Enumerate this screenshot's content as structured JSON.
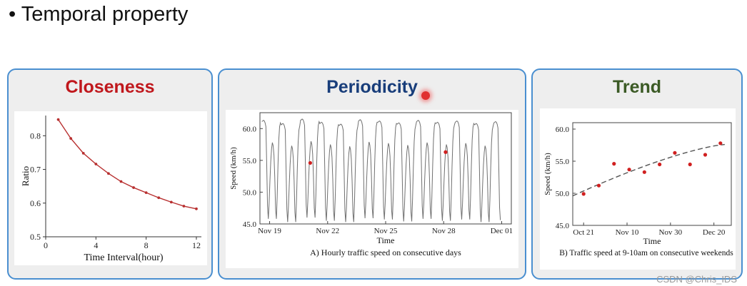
{
  "slide": {
    "bullet": "•",
    "title": "Temporal property"
  },
  "panels": {
    "closeness": {
      "title": "Closeness",
      "title_color": "#c0171c"
    },
    "periodicity": {
      "title": "Periodicity",
      "title_color": "#183d7a",
      "caption": "A) Hourly traffic speed on consecutive days"
    },
    "trend": {
      "title": "Trend",
      "title_color": "#3b5a25",
      "caption": "B) Traffic speed at 9-10am on consecutive weekends"
    }
  },
  "watermark": "CSDN @Chris_IDS",
  "colors": {
    "border": "#4a8fd0",
    "panel_bg": "#eeeeee",
    "curve": "#b83030",
    "marker": "#d02020",
    "line": "#707070"
  },
  "chart_data": [
    {
      "id": "closeness",
      "type": "line",
      "xlabel": "Time Interval(hour)",
      "ylabel": "Ratio",
      "xlim": [
        0,
        12.4
      ],
      "ylim": [
        0.5,
        0.86
      ],
      "xticks": [
        0,
        4,
        8,
        12
      ],
      "yticks": [
        0.5,
        0.6,
        0.7,
        0.8
      ],
      "ytick_labels": [
        "0.5",
        "0.6",
        "0.7",
        "0.8"
      ],
      "x": [
        1,
        2,
        3,
        4,
        5,
        6,
        7,
        8,
        9,
        10,
        11,
        12
      ],
      "y": [
        0.848,
        0.792,
        0.748,
        0.716,
        0.688,
        0.664,
        0.646,
        0.631,
        0.616,
        0.603,
        0.591,
        0.583
      ]
    },
    {
      "id": "periodicity",
      "type": "line",
      "xlabel": "Time",
      "ylabel": "Speed (km/h)",
      "ylim": [
        45,
        62.5
      ],
      "yticks": [
        45,
        50,
        55,
        60
      ],
      "ytick_labels": [
        "45.0",
        "50.0",
        "55.0",
        "60.0"
      ],
      "xtick_labels": [
        "Nov 19",
        "Nov 22",
        "Nov 25",
        "Nov 28",
        "Dec 01"
      ],
      "xlim_days": [
        0,
        13
      ],
      "xtick_days": [
        0.5,
        3.5,
        6.5,
        9.5,
        12.5
      ],
      "start_day": 0.1,
      "daily_profile": [
        60.8,
        60.9,
        61.0,
        60.9,
        60.6,
        60.0,
        54.0,
        47.5,
        45.5,
        48.0,
        51.5,
        54.5,
        56.5,
        57.5,
        57.0,
        55.5,
        52.0,
        47.0,
        45.5,
        49.0,
        54.0,
        58.0,
        60.0,
        60.6
      ],
      "day_offsets": [
        0.3,
        -0.2,
        0.5,
        0.0,
        -0.3,
        0.4,
        0.2,
        -0.1,
        0.3,
        0.0,
        0.2,
        -0.2,
        0.1
      ],
      "highlight_points": [
        {
          "day": 2.6,
          "speed": 54.6
        },
        {
          "day": 9.6,
          "speed": 56.3
        }
      ]
    },
    {
      "id": "trend",
      "type": "scatter",
      "xlabel": "Time",
      "ylabel": "Speed (km/h)",
      "ylim": [
        45,
        61
      ],
      "yticks": [
        45,
        50,
        55,
        60
      ],
      "ytick_labels": [
        "45.0",
        "50.0",
        "55.0",
        "60.0"
      ],
      "xtick_labels": [
        "Oct 21",
        "Nov 10",
        "Nov 30",
        "Dec 20"
      ],
      "xlim_days": [
        -5,
        68
      ],
      "xtick_days": [
        0,
        20,
        40,
        60
      ],
      "x": [
        0,
        7,
        14,
        21,
        28,
        35,
        42,
        49,
        56,
        63
      ],
      "y": [
        49.9,
        51.2,
        54.6,
        53.7,
        53.3,
        54.5,
        56.3,
        54.5,
        56.0,
        57.8
      ],
      "trend_line": {
        "x": [
          -5,
          65
        ],
        "y": [
          49.6,
          57.6
        ],
        "style": "dashed"
      }
    }
  ]
}
